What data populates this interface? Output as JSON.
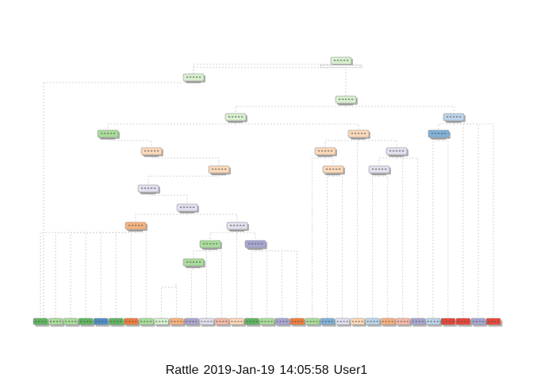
{
  "caption": {
    "app": "Rattle",
    "date": "2019-Jan-19",
    "time": "14:05:58",
    "user": "User1"
  },
  "colors": {
    "green_light": "#d7efcf",
    "green": "#a9dd9a",
    "green_dark": "#5fb55f",
    "blue_light": "#bcd4ea",
    "blue": "#7fb0d9",
    "blue_dark": "#4f8ec4",
    "orange_light": "#fbd8b8",
    "orange": "#f7b27d",
    "orange_dark": "#ef7d3c",
    "purple_light": "#e1e0ef",
    "purple": "#a8a6d1",
    "red": "#e8463a",
    "leaf_pink": "#f4b9a8"
  },
  "tree": {
    "nodes": [
      {
        "id": "n1",
        "color": "green_light"
      },
      {
        "id": "n2",
        "color": "green_light"
      },
      {
        "id": "n3",
        "color": "green_light"
      },
      {
        "id": "n4",
        "color": "green_light"
      },
      {
        "id": "n5",
        "color": "blue_light"
      },
      {
        "id": "n6",
        "color": "green"
      },
      {
        "id": "n7",
        "color": "orange_light"
      },
      {
        "id": "n8",
        "color": "orange_light"
      },
      {
        "id": "n9",
        "color": "purple_light"
      },
      {
        "id": "n10",
        "color": "orange_light"
      },
      {
        "id": "n11",
        "color": "orange_light"
      },
      {
        "id": "n12",
        "color": "blue"
      },
      {
        "id": "n13",
        "color": "orange_light"
      },
      {
        "id": "n14",
        "color": "purple_light"
      },
      {
        "id": "n15",
        "color": "purple_light"
      },
      {
        "id": "n16",
        "color": "orange"
      },
      {
        "id": "n17",
        "color": "purple_light"
      },
      {
        "id": "n18",
        "color": "purple_light"
      },
      {
        "id": "n19",
        "color": "purple"
      },
      {
        "id": "n20",
        "color": "green"
      },
      {
        "id": "n21",
        "color": "green"
      }
    ],
    "leaves": [
      "green_dark",
      "green",
      "green",
      "green_dark",
      "blue_dark",
      "green_dark",
      "orange_dark",
      "green",
      "green_light",
      "orange",
      "purple",
      "purple_light",
      "leaf_pink",
      "orange_light",
      "green_dark",
      "green",
      "purple",
      "orange_dark",
      "green",
      "blue",
      "purple_light",
      "orange_light",
      "blue_light",
      "orange",
      "leaf_pink",
      "purple",
      "blue_light",
      "red",
      "red",
      "purple",
      "red"
    ]
  }
}
